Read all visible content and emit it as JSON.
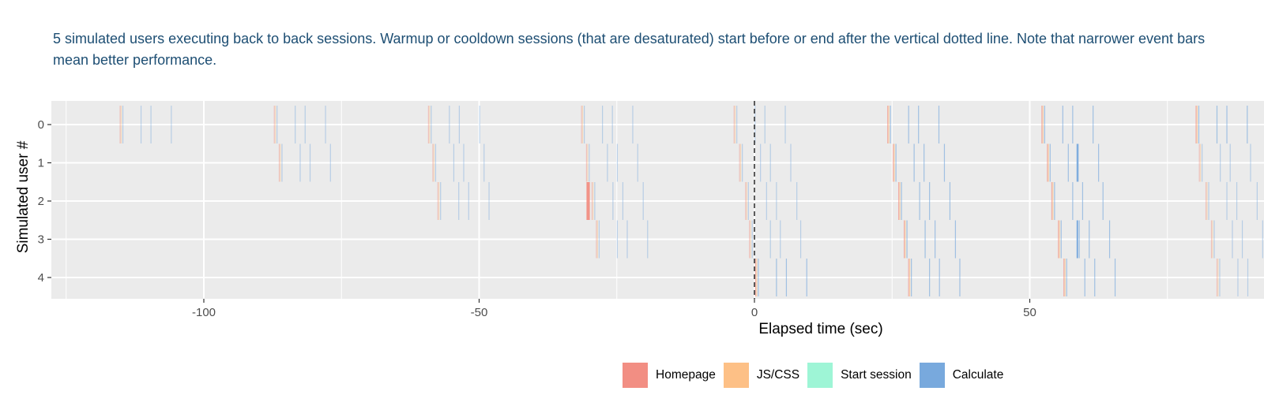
{
  "description": "5 simulated users executing back to back sessions. Warmup or cooldown sessions (that are desaturated) start before or end after the vertical dotted line. Note that narrower event bars mean better performance.",
  "chart_data": {
    "type": "timeline",
    "xlabel": "Elapsed time (sec)",
    "ylabel": "Simulated user #",
    "xlim": [
      -125,
      92
    ],
    "x_ticks": [
      -100,
      -50,
      0,
      50
    ],
    "y_ticks": [
      0,
      1,
      2,
      3,
      4
    ],
    "grid": true,
    "vline": {
      "x": 0,
      "style": "dashed"
    },
    "legend_position": "bottom",
    "legend": [
      {
        "name": "Homepage",
        "color": "#F28E83"
      },
      {
        "name": "JS/CSS",
        "color": "#FDC086"
      },
      {
        "name": "Start session",
        "color": "#9EF5D6"
      },
      {
        "name": "Calculate",
        "color": "#78A9DD"
      }
    ],
    "session_offsets": [
      0,
      0.2,
      0.5,
      3.8,
      5.6,
      9.3
    ],
    "session_steps": [
      "Homepage",
      "JS/CSS",
      "Calculate",
      "Calculate",
      "Calculate",
      "Calculate"
    ],
    "sessions": [
      {
        "user": 0,
        "start": -115.2
      },
      {
        "user": 0,
        "start": -87.2
      },
      {
        "user": 0,
        "start": -59.2
      },
      {
        "user": 0,
        "start": -31.4
      },
      {
        "user": 0,
        "start": -3.7
      },
      {
        "user": 0,
        "start": 24.2
      },
      {
        "user": 0,
        "start": 52.2
      },
      {
        "user": 0,
        "start": 80.2
      },
      {
        "user": 1,
        "start": -86.3
      },
      {
        "user": 1,
        "start": -58.4
      },
      {
        "user": 1,
        "start": -30.5
      },
      {
        "user": 1,
        "start": -2.7
      },
      {
        "user": 1,
        "start": 25.2
      },
      {
        "user": 1,
        "start": 53.2
      },
      {
        "user": 1,
        "start": 80.8
      },
      {
        "user": 2,
        "start": -57.5
      },
      {
        "user": 2,
        "start": -29.5
      },
      {
        "user": 2,
        "start": -1.6
      },
      {
        "user": 2,
        "start": 26.2
      },
      {
        "user": 2,
        "start": 54.0
      },
      {
        "user": 2,
        "start": 82.0
      },
      {
        "user": 3,
        "start": -28.7
      },
      {
        "user": 3,
        "start": -0.9
      },
      {
        "user": 3,
        "start": 27.2
      },
      {
        "user": 3,
        "start": 55.2
      },
      {
        "user": 3,
        "start": 83.0
      },
      {
        "user": 4,
        "start": 0.2
      },
      {
        "user": 4,
        "start": 28.0
      },
      {
        "user": 4,
        "start": 56.2
      },
      {
        "user": 4,
        "start": 84.0
      }
    ],
    "highlighted_events": [
      {
        "user": 2,
        "start": -30.5,
        "end": -29.9,
        "type": "Homepage"
      },
      {
        "user": 1,
        "start": 58.5,
        "end": 58.8,
        "type": "Calculate"
      },
      {
        "user": 3,
        "start": 58.5,
        "end": 58.8,
        "type": "Calculate"
      }
    ]
  }
}
